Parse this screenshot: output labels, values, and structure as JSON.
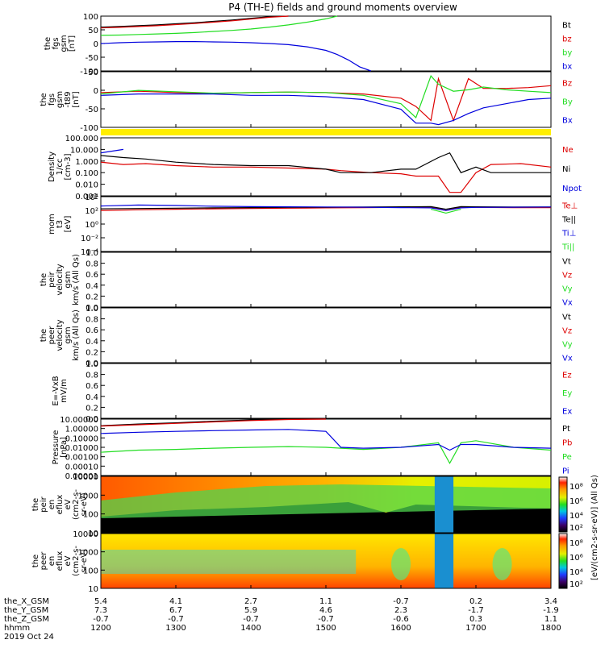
{
  "title": "P4 (TH-E) fields and ground moments overview",
  "colors": {
    "black": "#000000",
    "red": "#dd0000",
    "green": "#22dd22",
    "blue": "#0000dd",
    "yellow": "#ffee00",
    "frame": "#000000"
  },
  "chart_data": [
    {
      "type": "line",
      "panel": "fgs",
      "ylabel_lines": [
        "the",
        "fgs",
        "gsm",
        "[nT]"
      ],
      "yticks": [
        "100",
        "50",
        "0",
        "-50",
        "-100"
      ],
      "ylim": [
        -100,
        100
      ],
      "x": [
        1200,
        1225,
        1250,
        1275,
        1300,
        1325,
        1350,
        1375,
        1400,
        1425,
        1450,
        1475,
        1500,
        1515,
        1530,
        1545,
        1560
      ],
      "series": [
        {
          "name": "Bt",
          "color": "black",
          "values": [
            60,
            62,
            65,
            68,
            72,
            76,
            81,
            86,
            92,
            98,
            100,
            null,
            null,
            null,
            null,
            null,
            null
          ]
        },
        {
          "name": "bz",
          "color": "red",
          "values": [
            57,
            59,
            62,
            65,
            69,
            73,
            78,
            83,
            89,
            96,
            100,
            null,
            null,
            null,
            null,
            null,
            null
          ]
        },
        {
          "name": "by",
          "color": "green",
          "values": [
            30,
            31,
            33,
            35,
            37,
            40,
            44,
            48,
            53,
            60,
            68,
            78,
            90,
            100,
            null,
            null,
            null
          ]
        },
        {
          "name": "bx",
          "color": "blue",
          "values": [
            0,
            3,
            5,
            6,
            7,
            7,
            6,
            5,
            3,
            0,
            -4,
            -12,
            -25,
            -40,
            -60,
            -85,
            -100
          ]
        }
      ]
    },
    {
      "type": "line",
      "panel": "fgs-minus-t89",
      "ylabel_lines": [
        "the",
        "fgs",
        "gsm",
        "-t89",
        "[nT]"
      ],
      "yticks": [
        "50",
        "0",
        "-50",
        "-100"
      ],
      "ylim": [
        -125,
        75
      ],
      "x": [
        1200,
        1250,
        1300,
        1350,
        1400,
        1450,
        1500,
        1550,
        1600,
        1620,
        1640,
        1650,
        1670,
        1690,
        1710,
        1740,
        1770,
        1800
      ],
      "series": [
        {
          "name": "Bz",
          "color": "red",
          "values": [
            0,
            5,
            0,
            -3,
            0,
            2,
            0,
            -5,
            -20,
            -50,
            -100,
            50,
            -100,
            50,
            15,
            15,
            18,
            25
          ]
        },
        {
          "name": "By",
          "color": "green",
          "values": [
            -5,
            8,
            3,
            -2,
            0,
            2,
            0,
            -10,
            -40,
            -90,
            60,
            30,
            5,
            10,
            20,
            10,
            5,
            0
          ]
        },
        {
          "name": "Bx",
          "color": "blue",
          "values": [
            -10,
            -5,
            -5,
            -5,
            -10,
            -10,
            -15,
            -25,
            -60,
            -110,
            -110,
            -115,
            -100,
            -75,
            -55,
            -40,
            -25,
            -20
          ]
        }
      ]
    },
    {
      "type": "line",
      "panel": "density",
      "log": true,
      "ylabel_lines": [
        "Density",
        "1/cc",
        "[cm-3]"
      ],
      "yticks": [
        "100.000",
        "10.000",
        "1.000",
        "0.100",
        "0.010",
        "0.001"
      ],
      "ylim": [
        0.001,
        100
      ],
      "x": [
        1200,
        1230,
        1260,
        1300,
        1350,
        1400,
        1450,
        1500,
        1520,
        1560,
        1600,
        1620,
        1650,
        1665,
        1680,
        1700,
        1720,
        1760,
        1800
      ],
      "series": [
        {
          "name": "Ne",
          "color": "red",
          "values": [
            0.8,
            0.5,
            0.6,
            0.4,
            0.3,
            0.3,
            0.25,
            0.2,
            0.15,
            0.1,
            0.08,
            0.05,
            0.05,
            0.002,
            0.002,
            0.1,
            0.5,
            0.6,
            0.3
          ]
        },
        {
          "name": "Ni",
          "color": "black",
          "values": [
            3,
            2,
            1.5,
            0.8,
            0.5,
            0.4,
            0.4,
            0.2,
            0.1,
            0.1,
            0.2,
            0.2,
            2,
            5,
            0.1,
            0.3,
            0.1,
            0.1,
            0.1
          ]
        },
        {
          "name": "Npot",
          "color": "blue",
          "values": [
            5,
            10,
            null,
            null,
            null,
            null,
            null,
            null,
            null,
            null,
            null,
            null,
            null,
            null,
            null,
            null,
            null,
            null,
            null
          ]
        }
      ]
    },
    {
      "type": "line",
      "panel": "temperature",
      "log": true,
      "ylabel_lines": [
        "mom",
        "t3",
        "[eV]"
      ],
      "yticks": [
        "10⁴",
        "10²",
        "10⁰",
        "10⁻²",
        "10⁻⁴"
      ],
      "ylim": [
        1e-05,
        100000
      ],
      "x": [
        1200,
        1250,
        1300,
        1350,
        1400,
        1450,
        1500,
        1550,
        1600,
        1640,
        1660,
        1680,
        1700,
        1750,
        1800
      ],
      "series": [
        {
          "name": "Te⊥",
          "color": "red",
          "values": [
            300,
            400,
            500,
            600,
            700,
            800,
            900,
            1000,
            1100,
            1200,
            300,
            1200,
            1100,
            1000,
            1000
          ]
        },
        {
          "name": "Te||",
          "color": "black",
          "values": [
            600,
            700,
            800,
            900,
            1000,
            1100,
            1200,
            1300,
            1400,
            1500,
            500,
            1500,
            1400,
            1300,
            1300
          ]
        },
        {
          "name": "Ti⊥",
          "color": "blue",
          "values": [
            2000,
            3000,
            2500,
            1800,
            1500,
            1400,
            1300,
            1200,
            1000,
            900,
            300,
            900,
            1100,
            1200,
            1300
          ]
        },
        {
          "name": "Ti||",
          "color": "green",
          "values": [
            null,
            null,
            null,
            null,
            null,
            null,
            null,
            null,
            null,
            500,
            100,
            500,
            null,
            null,
            null
          ]
        }
      ]
    },
    {
      "type": "line",
      "panel": "peir-velocity",
      "ylabel_lines": [
        "the",
        "peir",
        "velocity",
        "gsm",
        "km/s (All Qs)"
      ],
      "yticks": [
        "1.0",
        "0.8",
        "0.6",
        "0.4",
        "0.2",
        "0.0"
      ],
      "ylim": [
        0,
        1
      ],
      "series": [
        {
          "name": "Vt",
          "color": "black",
          "values": []
        },
        {
          "name": "Vz",
          "color": "red",
          "values": []
        },
        {
          "name": "Vy",
          "color": "green",
          "values": []
        },
        {
          "name": "Vx",
          "color": "blue",
          "values": []
        }
      ]
    },
    {
      "type": "line",
      "panel": "peer-velocity",
      "ylabel_lines": [
        "the",
        "peer",
        "velocity",
        "gsm",
        "km/s (All Qs)"
      ],
      "yticks": [
        "1.0",
        "0.8",
        "0.6",
        "0.4",
        "0.2",
        "0.0"
      ],
      "ylim": [
        0,
        1
      ],
      "series": [
        {
          "name": "Vt",
          "color": "black",
          "values": []
        },
        {
          "name": "Vz",
          "color": "red",
          "values": []
        },
        {
          "name": "Vy",
          "color": "green",
          "values": []
        },
        {
          "name": "Vx",
          "color": "blue",
          "values": []
        }
      ]
    },
    {
      "type": "line",
      "panel": "efield",
      "ylabel_lines": [
        "E=-VxB",
        "mV/m"
      ],
      "yticks": [
        "1.0",
        "0.8",
        "0.6",
        "0.4",
        "0.2",
        "0.0"
      ],
      "ylim": [
        0,
        1
      ],
      "series": [
        {
          "name": "Ez",
          "color": "red",
          "values": []
        },
        {
          "name": "Ey",
          "color": "green",
          "values": []
        },
        {
          "name": "Ex",
          "color": "blue",
          "values": []
        }
      ]
    },
    {
      "type": "line",
      "panel": "pressure",
      "log": true,
      "ylabel_lines": [
        "Pressure",
        "[nPa]"
      ],
      "yticks": [
        "10.00000",
        "1.00000",
        "0.10000",
        "0.01000",
        "0.00100",
        "0.00010",
        "0.00001"
      ],
      "ylim": [
        1e-05,
        10
      ],
      "x": [
        1200,
        1250,
        1300,
        1350,
        1400,
        1450,
        1500,
        1520,
        1550,
        1600,
        1650,
        1665,
        1680,
        1700,
        1750,
        1800
      ],
      "series": [
        {
          "name": "Pt",
          "color": "black",
          "values": [
            2,
            3,
            4,
            6,
            8,
            10,
            12,
            null,
            null,
            null,
            null,
            null,
            null,
            null,
            null,
            null
          ]
        },
        {
          "name": "Pb",
          "color": "red",
          "values": [
            1.8,
            2.5,
            3.5,
            5,
            7,
            9,
            11,
            null,
            null,
            null,
            null,
            null,
            null,
            null,
            null,
            null
          ]
        },
        {
          "name": "Pe",
          "color": "green",
          "values": [
            0.003,
            0.005,
            0.006,
            0.008,
            0.01,
            0.012,
            0.01,
            0.008,
            0.006,
            0.01,
            0.03,
            0.0002,
            0.03,
            0.05,
            0.01,
            0.005
          ]
        },
        {
          "name": "Pi",
          "color": "blue",
          "values": [
            0.3,
            0.4,
            0.5,
            0.6,
            0.7,
            0.8,
            0.5,
            0.01,
            0.008,
            0.01,
            0.02,
            0.005,
            0.02,
            0.02,
            0.01,
            0.008
          ]
        }
      ]
    },
    {
      "type": "heatmap",
      "panel": "peir-spectrogram",
      "ylabel_lines": [
        "the",
        "peir",
        "en",
        "eflux",
        "eV",
        "(cm2-s-",
        "sr-eV)"
      ],
      "yticks": [
        "10000",
        "1000",
        "100",
        "10"
      ]
    },
    {
      "type": "heatmap",
      "panel": "peer-spectrogram",
      "ylabel_lines": [
        "the",
        "peer",
        "en",
        "eflux",
        "eV",
        "(cm2-s-",
        "sr-eV)"
      ],
      "yticks": [
        "10000",
        "1000",
        "100",
        "10"
      ]
    }
  ],
  "colorbar": {
    "label": "[eV/(cm2-s-sr-eV)] (All Qs)",
    "ticks_top": [
      "10⁸",
      "10⁶",
      "10⁴",
      "10²"
    ],
    "ticks_bottom": [
      "10⁸",
      "10⁶",
      "10⁴",
      "10²"
    ]
  },
  "xaxis": {
    "rows": [
      {
        "name": "the_X_GSM",
        "values": [
          "5.4",
          "4.1",
          "2.7",
          "1.1",
          "-0.7",
          "0.2",
          "3.4"
        ]
      },
      {
        "name": "the_Y_GSM",
        "values": [
          "7.3",
          "6.7",
          "5.9",
          "4.6",
          "2.3",
          "-1.7",
          "-1.9"
        ]
      },
      {
        "name": "the_Z_GSM",
        "values": [
          "-0.7",
          "-0.7",
          "-0.7",
          "-0.7",
          "-0.6",
          "0.3",
          "1.1"
        ]
      },
      {
        "name": "hhmm",
        "values": [
          "1200",
          "1300",
          "1400",
          "1500",
          "1600",
          "1700",
          "1800"
        ]
      }
    ],
    "date": "2019 Oct 24"
  }
}
